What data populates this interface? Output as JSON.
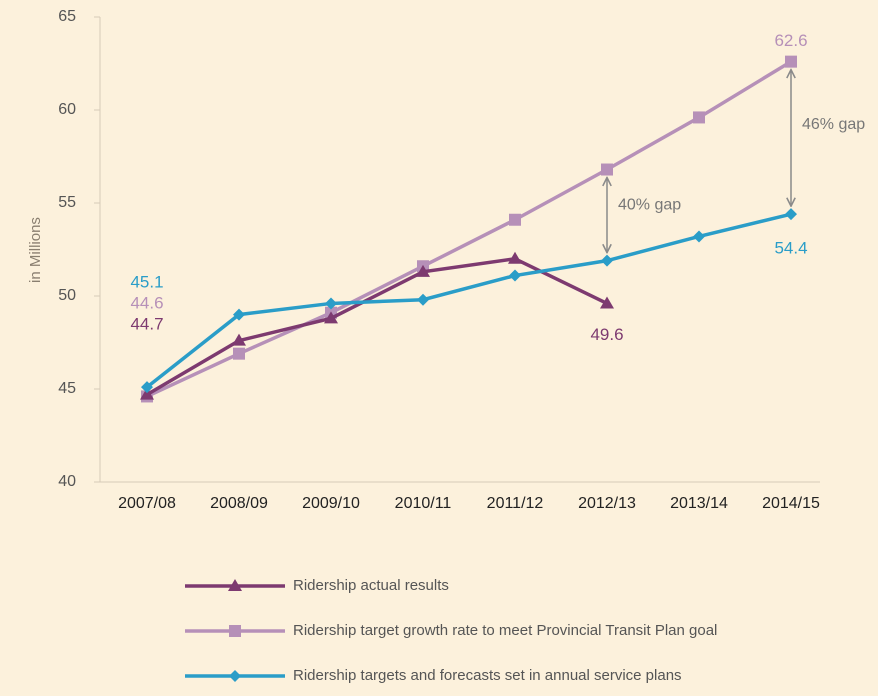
{
  "chart_data": {
    "type": "line",
    "y_label": "in Millions",
    "categories": [
      "2007/08",
      "2008/09",
      "2009/10",
      "2010/11",
      "2011/12",
      "2012/13",
      "2013/14",
      "2014/15"
    ],
    "ylim": [
      40,
      65
    ],
    "yticks": [
      40,
      45,
      50,
      55,
      60,
      65
    ],
    "series": [
      {
        "name": "Ridership actual results",
        "color": "#7d3a70",
        "marker": "triangle",
        "values": [
          44.7,
          47.6,
          48.8,
          51.3,
          52.0,
          49.6,
          null,
          null
        ],
        "value_labels": [
          "44.7",
          null,
          null,
          null,
          null,
          "49.6",
          null,
          null
        ]
      },
      {
        "name": "Ridership target growth rate to meet Provincial Transit Plan goal",
        "color": "#b690b8",
        "marker": "square",
        "values": [
          44.6,
          46.9,
          49.1,
          51.6,
          54.1,
          56.8,
          59.6,
          62.6
        ],
        "value_labels": [
          "44.6",
          null,
          null,
          null,
          null,
          null,
          null,
          "62.6"
        ]
      },
      {
        "name": "Ridership targets and forecasts set in annual service plans",
        "color": "#2a9dc8",
        "marker": "diamond",
        "values": [
          45.1,
          49.0,
          49.6,
          49.8,
          51.1,
          51.9,
          53.2,
          54.4
        ],
        "value_labels": [
          "45.1",
          null,
          null,
          null,
          null,
          null,
          null,
          "54.4"
        ]
      }
    ],
    "annotations": [
      {
        "text": "40% gap",
        "category": "2012/13"
      },
      {
        "text": "46% gap",
        "category": "2014/15"
      }
    ]
  }
}
